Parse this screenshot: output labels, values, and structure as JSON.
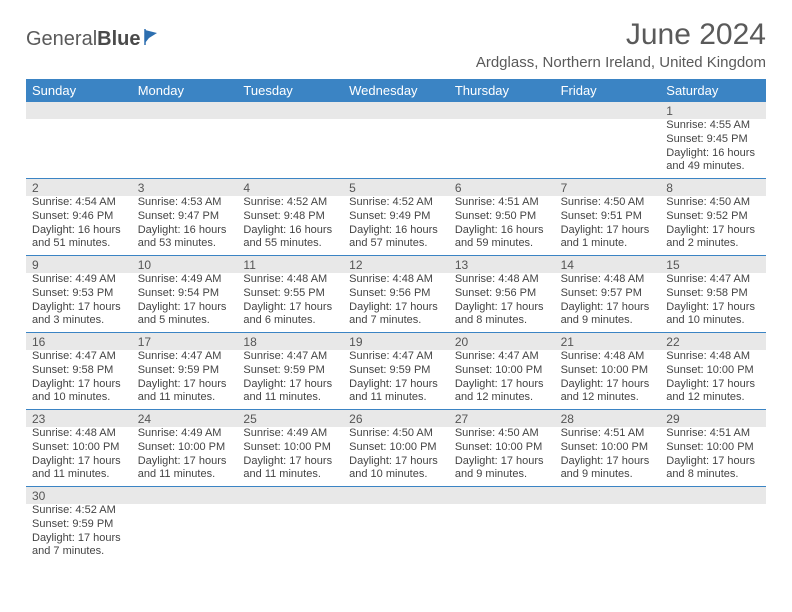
{
  "logo": {
    "part1": "General",
    "part2": "Blue"
  },
  "title": "June 2024",
  "location": "Ardglass, Northern Ireland, United Kingdom",
  "colors": {
    "header_bg": "#3b84c4",
    "header_text": "#ffffff",
    "daynum_bg": "#e8e8e8",
    "cell_text": "#444444",
    "rule": "#3b84c4",
    "logo_accent": "#2d6fb0"
  },
  "dayNames": [
    "Sunday",
    "Monday",
    "Tuesday",
    "Wednesday",
    "Thursday",
    "Friday",
    "Saturday"
  ],
  "weeks": [
    [
      null,
      null,
      null,
      null,
      null,
      null,
      {
        "n": "1",
        "sr": "4:55 AM",
        "ss": "9:45 PM",
        "dl": "16 hours and 49 minutes."
      }
    ],
    [
      {
        "n": "2",
        "sr": "4:54 AM",
        "ss": "9:46 PM",
        "dl": "16 hours and 51 minutes."
      },
      {
        "n": "3",
        "sr": "4:53 AM",
        "ss": "9:47 PM",
        "dl": "16 hours and 53 minutes."
      },
      {
        "n": "4",
        "sr": "4:52 AM",
        "ss": "9:48 PM",
        "dl": "16 hours and 55 minutes."
      },
      {
        "n": "5",
        "sr": "4:52 AM",
        "ss": "9:49 PM",
        "dl": "16 hours and 57 minutes."
      },
      {
        "n": "6",
        "sr": "4:51 AM",
        "ss": "9:50 PM",
        "dl": "16 hours and 59 minutes."
      },
      {
        "n": "7",
        "sr": "4:50 AM",
        "ss": "9:51 PM",
        "dl": "17 hours and 1 minute."
      },
      {
        "n": "8",
        "sr": "4:50 AM",
        "ss": "9:52 PM",
        "dl": "17 hours and 2 minutes."
      }
    ],
    [
      {
        "n": "9",
        "sr": "4:49 AM",
        "ss": "9:53 PM",
        "dl": "17 hours and 3 minutes."
      },
      {
        "n": "10",
        "sr": "4:49 AM",
        "ss": "9:54 PM",
        "dl": "17 hours and 5 minutes."
      },
      {
        "n": "11",
        "sr": "4:48 AM",
        "ss": "9:55 PM",
        "dl": "17 hours and 6 minutes."
      },
      {
        "n": "12",
        "sr": "4:48 AM",
        "ss": "9:56 PM",
        "dl": "17 hours and 7 minutes."
      },
      {
        "n": "13",
        "sr": "4:48 AM",
        "ss": "9:56 PM",
        "dl": "17 hours and 8 minutes."
      },
      {
        "n": "14",
        "sr": "4:48 AM",
        "ss": "9:57 PM",
        "dl": "17 hours and 9 minutes."
      },
      {
        "n": "15",
        "sr": "4:47 AM",
        "ss": "9:58 PM",
        "dl": "17 hours and 10 minutes."
      }
    ],
    [
      {
        "n": "16",
        "sr": "4:47 AM",
        "ss": "9:58 PM",
        "dl": "17 hours and 10 minutes."
      },
      {
        "n": "17",
        "sr": "4:47 AM",
        "ss": "9:59 PM",
        "dl": "17 hours and 11 minutes."
      },
      {
        "n": "18",
        "sr": "4:47 AM",
        "ss": "9:59 PM",
        "dl": "17 hours and 11 minutes."
      },
      {
        "n": "19",
        "sr": "4:47 AM",
        "ss": "9:59 PM",
        "dl": "17 hours and 11 minutes."
      },
      {
        "n": "20",
        "sr": "4:47 AM",
        "ss": "10:00 PM",
        "dl": "17 hours and 12 minutes."
      },
      {
        "n": "21",
        "sr": "4:48 AM",
        "ss": "10:00 PM",
        "dl": "17 hours and 12 minutes."
      },
      {
        "n": "22",
        "sr": "4:48 AM",
        "ss": "10:00 PM",
        "dl": "17 hours and 12 minutes."
      }
    ],
    [
      {
        "n": "23",
        "sr": "4:48 AM",
        "ss": "10:00 PM",
        "dl": "17 hours and 11 minutes."
      },
      {
        "n": "24",
        "sr": "4:49 AM",
        "ss": "10:00 PM",
        "dl": "17 hours and 11 minutes."
      },
      {
        "n": "25",
        "sr": "4:49 AM",
        "ss": "10:00 PM",
        "dl": "17 hours and 11 minutes."
      },
      {
        "n": "26",
        "sr": "4:50 AM",
        "ss": "10:00 PM",
        "dl": "17 hours and 10 minutes."
      },
      {
        "n": "27",
        "sr": "4:50 AM",
        "ss": "10:00 PM",
        "dl": "17 hours and 9 minutes."
      },
      {
        "n": "28",
        "sr": "4:51 AM",
        "ss": "10:00 PM",
        "dl": "17 hours and 9 minutes."
      },
      {
        "n": "29",
        "sr": "4:51 AM",
        "ss": "10:00 PM",
        "dl": "17 hours and 8 minutes."
      }
    ],
    [
      {
        "n": "30",
        "sr": "4:52 AM",
        "ss": "9:59 PM",
        "dl": "17 hours and 7 minutes."
      },
      null,
      null,
      null,
      null,
      null,
      null
    ]
  ],
  "labels": {
    "sunrise": "Sunrise:",
    "sunset": "Sunset:",
    "daylight": "Daylight:"
  }
}
